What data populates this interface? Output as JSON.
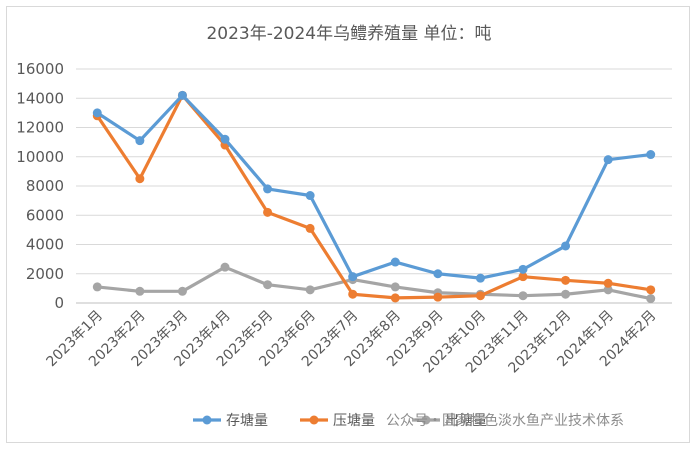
{
  "chart_data": {
    "type": "line",
    "title": "2023年-2024年乌鳢养殖量 单位：吨",
    "categories": [
      "2023年1月",
      "2023年2月",
      "2023年3月",
      "2023年4月",
      "2023年5月",
      "2023年6月",
      "2023年7月",
      "2023年8月",
      "2023年9月",
      "2023年10月",
      "2023年11月",
      "2023年12月",
      "2024年1月",
      "2024年2月"
    ],
    "series": [
      {
        "name": "存塘量",
        "color": "#5b9bd5",
        "values": [
          13000,
          11100,
          14200,
          11200,
          7800,
          7350,
          1800,
          2800,
          2000,
          1700,
          2300,
          3900,
          9800,
          10150
        ]
      },
      {
        "name": "压塘量",
        "color": "#ed7d31",
        "values": [
          12800,
          8500,
          14200,
          10800,
          6200,
          5100,
          600,
          350,
          400,
          500,
          1800,
          1550,
          1350,
          900
        ]
      },
      {
        "name": "出塘量",
        "color": "#a5a5a5",
        "values": [
          1100,
          800,
          800,
          2450,
          1250,
          900,
          1600,
          1100,
          700,
          600,
          500,
          600,
          900,
          300
        ]
      }
    ],
    "ylim": [
      0,
      16000
    ],
    "yticks": [
      "0",
      "2000",
      "4000",
      "6000",
      "8000",
      "10000",
      "12000",
      "14000",
      "16000"
    ],
    "grid": true,
    "legend": "bottom"
  },
  "watermark": "公众号・国家特色淡水鱼产业技术体系"
}
